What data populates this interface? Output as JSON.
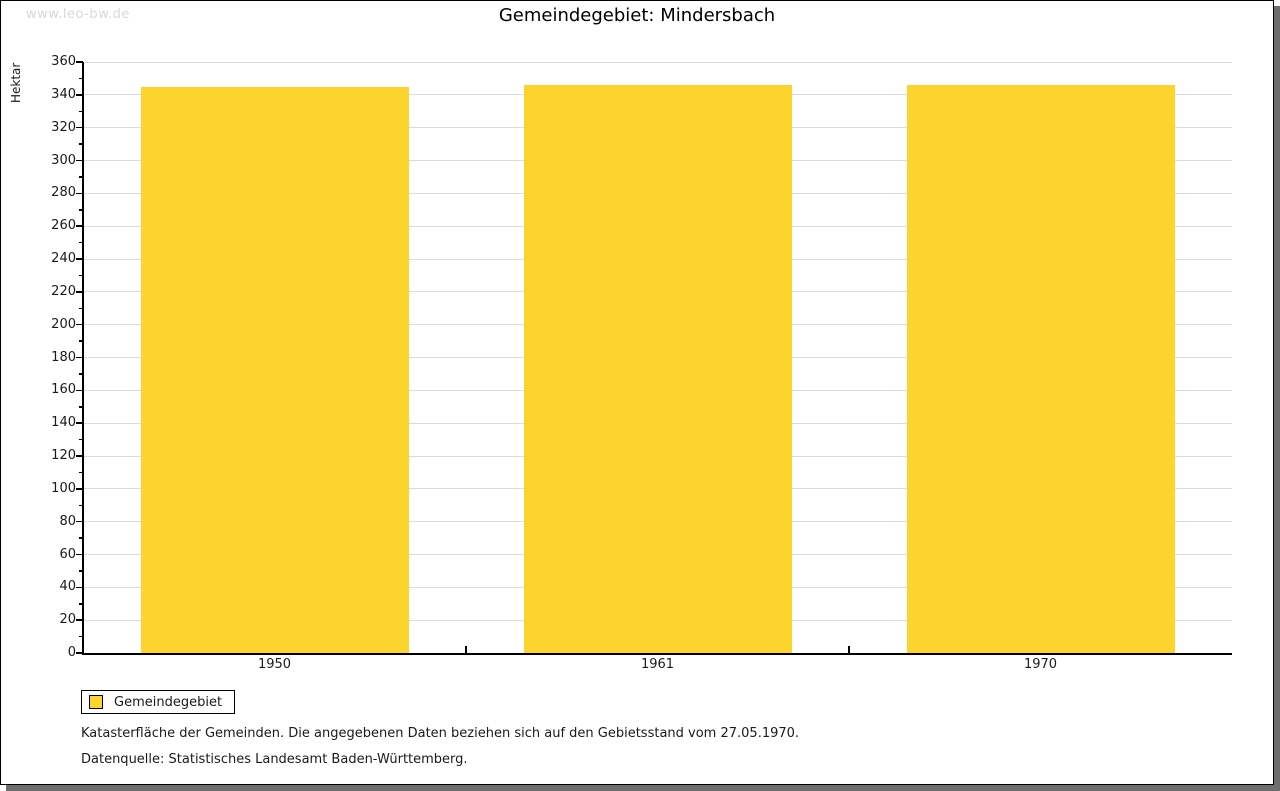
{
  "watermark": "www.leo-bw.de",
  "footer": {
    "note": "Katasterfläche der Gemeinden. Die angegebenen Daten beziehen sich auf den Gebietsstand vom 27.05.1970.",
    "source": "Datenquelle: Statistisches Landesamt Baden-Württemberg."
  },
  "colors": {
    "bar": "#FCD42D",
    "grid": "#DCDCDC",
    "axis": "#000000",
    "shadow": "#6E6E6E",
    "watermark": "#D8D8D8",
    "text": "#1A1A1A"
  },
  "chart_data": {
    "type": "bar",
    "title": "Gemeindegebiet: Mindersbach",
    "xlabel": "",
    "ylabel": "Hektar",
    "categories": [
      "1950",
      "1961",
      "1970"
    ],
    "series": [
      {
        "name": "Gemeindegebiet",
        "values": [
          345,
          346,
          346
        ]
      }
    ],
    "ylim": [
      0,
      360
    ],
    "ytick_step": 20,
    "yminor_step": 10,
    "grid": true,
    "legend_position": "bottom-left"
  }
}
